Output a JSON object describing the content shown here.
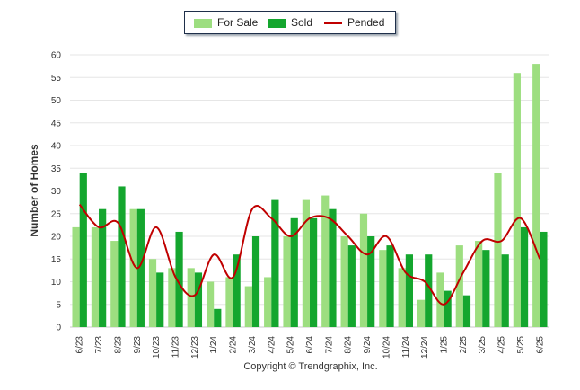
{
  "legend": {
    "for_sale": "For Sale",
    "sold": "Sold",
    "pended": "Pended"
  },
  "colors": {
    "for_sale": "#9dde80",
    "sold": "#14a62e",
    "pended": "#c00000",
    "grid": "#e6e6e6"
  },
  "credit": "Copyright © Trendgraphix, Inc.",
  "chart_data": {
    "type": "bar",
    "categories": [
      "6/23",
      "7/23",
      "8/23",
      "9/23",
      "10/23",
      "11/23",
      "12/23",
      "1/24",
      "2/24",
      "3/24",
      "4/24",
      "5/24",
      "6/24",
      "7/24",
      "8/24",
      "9/24",
      "10/24",
      "11/24",
      "12/24",
      "1/25",
      "2/25",
      "3/25",
      "4/25",
      "5/25",
      "6/25"
    ],
    "series": [
      {
        "name": "For Sale",
        "type": "bar",
        "values": [
          22,
          22,
          19,
          26,
          15,
          13,
          13,
          10,
          11,
          9,
          11,
          20,
          28,
          29,
          20,
          25,
          17,
          13,
          6,
          12,
          18,
          19,
          34,
          56,
          58
        ]
      },
      {
        "name": "Sold",
        "type": "bar",
        "values": [
          34,
          26,
          31,
          26,
          12,
          21,
          12,
          4,
          16,
          20,
          28,
          24,
          24,
          26,
          18,
          20,
          18,
          16,
          16,
          8,
          7,
          17,
          16,
          22,
          21
        ]
      },
      {
        "name": "Pended",
        "type": "line",
        "values": [
          27,
          22,
          23,
          13,
          22,
          11,
          7,
          16,
          11,
          26,
          24,
          20,
          24,
          24,
          20,
          16,
          20,
          12,
          10,
          5,
          12,
          19,
          19,
          24,
          15
        ]
      }
    ],
    "ylabel": "Number of Homes",
    "xlabel": "",
    "ylim": [
      0,
      60
    ],
    "yticks": [
      0,
      5,
      10,
      15,
      20,
      25,
      30,
      35,
      40,
      45,
      50,
      55,
      60
    ],
    "grid": true,
    "legend_position": "top-center"
  }
}
